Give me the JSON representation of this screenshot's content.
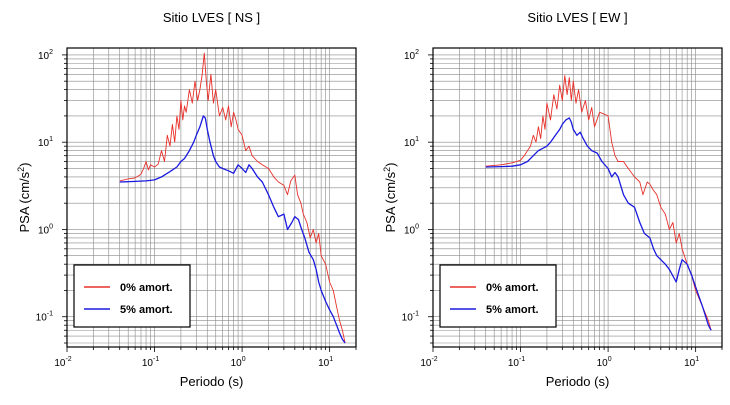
{
  "chart_data": [
    {
      "type": "line",
      "title": "Sitio LVES [ NS ]",
      "xlabel": "Periodo (s)",
      "ylabel": "PSA (cm/s²)",
      "ylabel_main": "PSA (cm/s",
      "ylabel_sup": "2",
      "ylabel_tail": ")",
      "xscale": "log",
      "yscale": "log",
      "xlim": [
        0.01,
        20
      ],
      "ylim": [
        0.045,
        120
      ],
      "grid": true,
      "legend_position": "bottom-left",
      "x_ticks": [
        {
          "value": 0.01,
          "base": "10",
          "exp": "-2"
        },
        {
          "value": 0.1,
          "base": "10",
          "exp": "-1"
        },
        {
          "value": 1,
          "base": "10",
          "exp": "0"
        },
        {
          "value": 10,
          "base": "10",
          "exp": "1"
        }
      ],
      "y_ticks": [
        {
          "value": 0.1,
          "base": "10",
          "exp": "-1"
        },
        {
          "value": 1,
          "base": "10",
          "exp": "0"
        },
        {
          "value": 10,
          "base": "10",
          "exp": "1"
        },
        {
          "value": 100,
          "base": "10",
          "exp": "2"
        }
      ],
      "series": [
        {
          "name": "0% amort.",
          "color": "#e8302a",
          "points": [
            [
              0.04,
              3.6
            ],
            [
              0.05,
              3.8
            ],
            [
              0.06,
              3.9
            ],
            [
              0.07,
              4.3
            ],
            [
              0.075,
              5.0
            ],
            [
              0.08,
              6.0
            ],
            [
              0.085,
              4.8
            ],
            [
              0.09,
              5.5
            ],
            [
              0.1,
              5.2
            ],
            [
              0.11,
              5.6
            ],
            [
              0.12,
              8
            ],
            [
              0.13,
              6
            ],
            [
              0.14,
              12
            ],
            [
              0.15,
              9
            ],
            [
              0.16,
              16
            ],
            [
              0.17,
              10
            ],
            [
              0.18,
              20
            ],
            [
              0.19,
              14
            ],
            [
              0.2,
              30
            ],
            [
              0.21,
              18
            ],
            [
              0.22,
              26
            ],
            [
              0.23,
              22
            ],
            [
              0.25,
              40
            ],
            [
              0.27,
              28
            ],
            [
              0.29,
              50
            ],
            [
              0.31,
              30
            ],
            [
              0.33,
              40
            ],
            [
              0.35,
              60
            ],
            [
              0.37,
              105
            ],
            [
              0.39,
              50
            ],
            [
              0.41,
              30
            ],
            [
              0.44,
              60
            ],
            [
              0.47,
              28
            ],
            [
              0.5,
              40
            ],
            [
              0.55,
              20
            ],
            [
              0.6,
              25
            ],
            [
              0.65,
              18
            ],
            [
              0.7,
              26
            ],
            [
              0.75,
              15
            ],
            [
              0.8,
              22
            ],
            [
              0.85,
              18
            ],
            [
              0.9,
              14
            ],
            [
              1.0,
              12
            ],
            [
              1.1,
              8
            ],
            [
              1.2,
              9
            ],
            [
              1.3,
              7
            ],
            [
              1.5,
              6
            ],
            [
              1.7,
              5.5
            ],
            [
              2.0,
              5
            ],
            [
              2.3,
              4
            ],
            [
              2.6,
              3.5
            ],
            [
              3.0,
              3.2
            ],
            [
              3.3,
              2.5
            ],
            [
              3.6,
              3.6
            ],
            [
              4.0,
              4.2
            ],
            [
              4.3,
              2.5
            ],
            [
              4.7,
              2.0
            ],
            [
              5.0,
              1.5
            ],
            [
              5.5,
              1.2
            ],
            [
              6.0,
              0.8
            ],
            [
              6.5,
              1.0
            ],
            [
              7.0,
              0.7
            ],
            [
              7.5,
              0.9
            ],
            [
              8.0,
              0.5
            ],
            [
              9.0,
              0.4
            ],
            [
              10,
              0.25
            ],
            [
              11,
              0.2
            ],
            [
              12,
              0.13
            ],
            [
              13,
              0.09
            ],
            [
              14,
              0.07
            ],
            [
              15,
              0.05
            ]
          ]
        },
        {
          "name": "5% amort.",
          "color": "#1a1ae0",
          "points": [
            [
              0.04,
              3.5
            ],
            [
              0.06,
              3.55
            ],
            [
              0.08,
              3.6
            ],
            [
              0.1,
              3.7
            ],
            [
              0.12,
              4
            ],
            [
              0.15,
              4.6
            ],
            [
              0.18,
              5.2
            ],
            [
              0.2,
              6
            ],
            [
              0.22,
              6.5
            ],
            [
              0.25,
              8
            ],
            [
              0.28,
              10
            ],
            [
              0.3,
              12
            ],
            [
              0.33,
              15
            ],
            [
              0.36,
              20
            ],
            [
              0.38,
              19
            ],
            [
              0.4,
              14
            ],
            [
              0.43,
              10
            ],
            [
              0.47,
              7
            ],
            [
              0.5,
              6
            ],
            [
              0.55,
              5.2
            ],
            [
              0.6,
              5
            ],
            [
              0.7,
              4.7
            ],
            [
              0.8,
              4.4
            ],
            [
              0.9,
              5.5
            ],
            [
              1.0,
              5
            ],
            [
              1.1,
              4.5
            ],
            [
              1.2,
              5.5
            ],
            [
              1.3,
              5
            ],
            [
              1.5,
              4
            ],
            [
              1.7,
              3.5
            ],
            [
              2.0,
              2.5
            ],
            [
              2.3,
              1.8
            ],
            [
              2.6,
              1.4
            ],
            [
              3.0,
              1.5
            ],
            [
              3.3,
              1.0
            ],
            [
              3.7,
              1.2
            ],
            [
              4.0,
              1.4
            ],
            [
              4.4,
              1.3
            ],
            [
              4.8,
              1.0
            ],
            [
              5.2,
              0.8
            ],
            [
              5.8,
              0.55
            ],
            [
              6.5,
              0.45
            ],
            [
              7,
              0.35
            ],
            [
              7.5,
              0.25
            ],
            [
              8,
              0.2
            ],
            [
              9,
              0.15
            ],
            [
              10,
              0.12
            ],
            [
              11,
              0.1
            ],
            [
              12,
              0.08
            ],
            [
              13,
              0.065
            ],
            [
              14,
              0.055
            ],
            [
              15,
              0.05
            ]
          ]
        }
      ]
    },
    {
      "type": "line",
      "title": "Sitio LVES [ EW ]",
      "xlabel": "Periodo (s)",
      "ylabel": "PSA (cm/s²)",
      "ylabel_main": "PSA (cm/s",
      "ylabel_sup": "2",
      "ylabel_tail": ")",
      "xscale": "log",
      "yscale": "log",
      "xlim": [
        0.01,
        20
      ],
      "ylim": [
        0.045,
        120
      ],
      "grid": true,
      "legend_position": "bottom-left",
      "x_ticks": [
        {
          "value": 0.01,
          "base": "10",
          "exp": "-2"
        },
        {
          "value": 0.1,
          "base": "10",
          "exp": "-1"
        },
        {
          "value": 1,
          "base": "10",
          "exp": "0"
        },
        {
          "value": 10,
          "base": "10",
          "exp": "1"
        }
      ],
      "y_ticks": [
        {
          "value": 0.1,
          "base": "10",
          "exp": "-1"
        },
        {
          "value": 1,
          "base": "10",
          "exp": "0"
        },
        {
          "value": 10,
          "base": "10",
          "exp": "1"
        },
        {
          "value": 100,
          "base": "10",
          "exp": "2"
        }
      ],
      "series": [
        {
          "name": "0% amort.",
          "color": "#e8302a",
          "points": [
            [
              0.04,
              5.3
            ],
            [
              0.06,
              5.5
            ],
            [
              0.08,
              5.8
            ],
            [
              0.1,
              6.2
            ],
            [
              0.11,
              7
            ],
            [
              0.12,
              8
            ],
            [
              0.13,
              9
            ],
            [
              0.14,
              12
            ],
            [
              0.15,
              10
            ],
            [
              0.16,
              15
            ],
            [
              0.17,
              11
            ],
            [
              0.18,
              20
            ],
            [
              0.19,
              14
            ],
            [
              0.2,
              28
            ],
            [
              0.22,
              18
            ],
            [
              0.24,
              35
            ],
            [
              0.26,
              24
            ],
            [
              0.28,
              45
            ],
            [
              0.3,
              30
            ],
            [
              0.32,
              58
            ],
            [
              0.34,
              35
            ],
            [
              0.36,
              55
            ],
            [
              0.38,
              30
            ],
            [
              0.4,
              50
            ],
            [
              0.43,
              28
            ],
            [
              0.46,
              40
            ],
            [
              0.5,
              22
            ],
            [
              0.55,
              30
            ],
            [
              0.6,
              18
            ],
            [
              0.65,
              25
            ],
            [
              0.7,
              15
            ],
            [
              0.8,
              22
            ],
            [
              0.9,
              21
            ],
            [
              1.0,
              20
            ],
            [
              1.1,
              10
            ],
            [
              1.2,
              7
            ],
            [
              1.3,
              6
            ],
            [
              1.5,
              6
            ],
            [
              1.7,
              5
            ],
            [
              2.0,
              4
            ],
            [
              2.3,
              3.5
            ],
            [
              2.5,
              2.5
            ],
            [
              2.8,
              3.5
            ],
            [
              3.0,
              3.3
            ],
            [
              3.3,
              2.8
            ],
            [
              3.6,
              2.5
            ],
            [
              4.0,
              1.8
            ],
            [
              4.5,
              1.5
            ],
            [
              5.0,
              1.0
            ],
            [
              5.5,
              1.2
            ],
            [
              6.0,
              0.7
            ],
            [
              6.5,
              0.9
            ],
            [
              7.0,
              0.6
            ],
            [
              8.0,
              0.4
            ],
            [
              9.0,
              0.3
            ],
            [
              10,
              0.2
            ],
            [
              12,
              0.13
            ],
            [
              14,
              0.09
            ],
            [
              15,
              0.07
            ]
          ]
        },
        {
          "name": "5% amort.",
          "color": "#1a1ae0",
          "points": [
            [
              0.04,
              5.2
            ],
            [
              0.06,
              5.25
            ],
            [
              0.08,
              5.3
            ],
            [
              0.1,
              5.5
            ],
            [
              0.12,
              6
            ],
            [
              0.14,
              7
            ],
            [
              0.16,
              8
            ],
            [
              0.18,
              8.5
            ],
            [
              0.2,
              9
            ],
            [
              0.22,
              10
            ],
            [
              0.25,
              12
            ],
            [
              0.28,
              14
            ],
            [
              0.3,
              16
            ],
            [
              0.33,
              18
            ],
            [
              0.36,
              19
            ],
            [
              0.38,
              17
            ],
            [
              0.4,
              14
            ],
            [
              0.44,
              12
            ],
            [
              0.48,
              13
            ],
            [
              0.52,
              11
            ],
            [
              0.58,
              9
            ],
            [
              0.65,
              8
            ],
            [
              0.75,
              7.5
            ],
            [
              0.85,
              6
            ],
            [
              1.0,
              5
            ],
            [
              1.1,
              4
            ],
            [
              1.2,
              4.5
            ],
            [
              1.3,
              4
            ],
            [
              1.5,
              2.5
            ],
            [
              1.7,
              2
            ],
            [
              2.0,
              1.8
            ],
            [
              2.3,
              1.2
            ],
            [
              2.6,
              0.9
            ],
            [
              3.0,
              0.8
            ],
            [
              3.3,
              0.6
            ],
            [
              3.6,
              0.5
            ],
            [
              4.0,
              0.45
            ],
            [
              4.5,
              0.4
            ],
            [
              5.0,
              0.35
            ],
            [
              6.0,
              0.25
            ],
            [
              6.5,
              0.35
            ],
            [
              7.0,
              0.45
            ],
            [
              8.0,
              0.4
            ],
            [
              9.0,
              0.3
            ],
            [
              10,
              0.22
            ],
            [
              12,
              0.13
            ],
            [
              14,
              0.08
            ],
            [
              15,
              0.07
            ]
          ]
        }
      ]
    }
  ]
}
